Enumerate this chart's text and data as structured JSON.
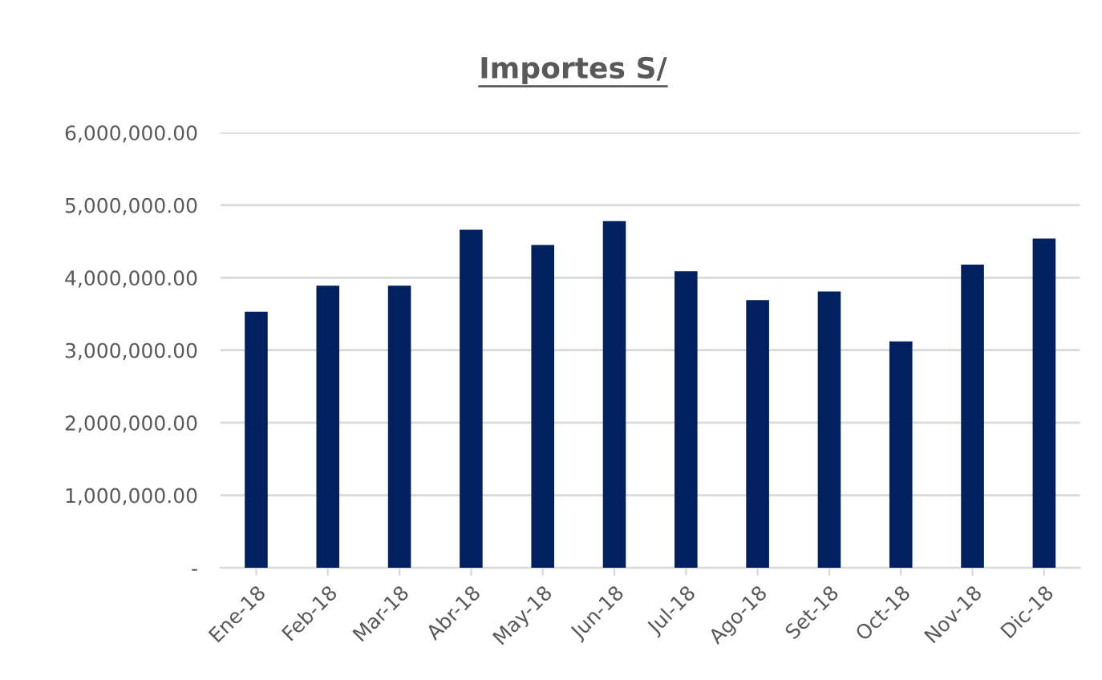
{
  "chart_data": {
    "type": "bar",
    "title": "Importes S/",
    "categories": [
      "Ene-18",
      "Feb-18",
      "Mar-18",
      "Abr-18",
      "May-18",
      "Jun-18",
      "Jul-18",
      "Ago-18",
      "Set-18",
      "Oct-18",
      "Nov-18",
      "Dic-18"
    ],
    "values": [
      3530000,
      3890000,
      3890000,
      4660000,
      4450000,
      4780000,
      4090000,
      3690000,
      3810000,
      3120000,
      4180000,
      4540000
    ],
    "color": "#002060",
    "ylim": [
      0,
      6000000
    ],
    "yticks": [
      {
        "value": 0,
        "label": "-"
      },
      {
        "value": 1000000,
        "label": "1,000,000.00"
      },
      {
        "value": 2000000,
        "label": "2,000,000.00"
      },
      {
        "value": 3000000,
        "label": "3,000,000.00"
      },
      {
        "value": 4000000,
        "label": "4,000,000.00"
      },
      {
        "value": 5000000,
        "label": "5,000,000.00"
      },
      {
        "value": 6000000,
        "label": "6,000,000.00"
      }
    ],
    "grid": "y"
  }
}
